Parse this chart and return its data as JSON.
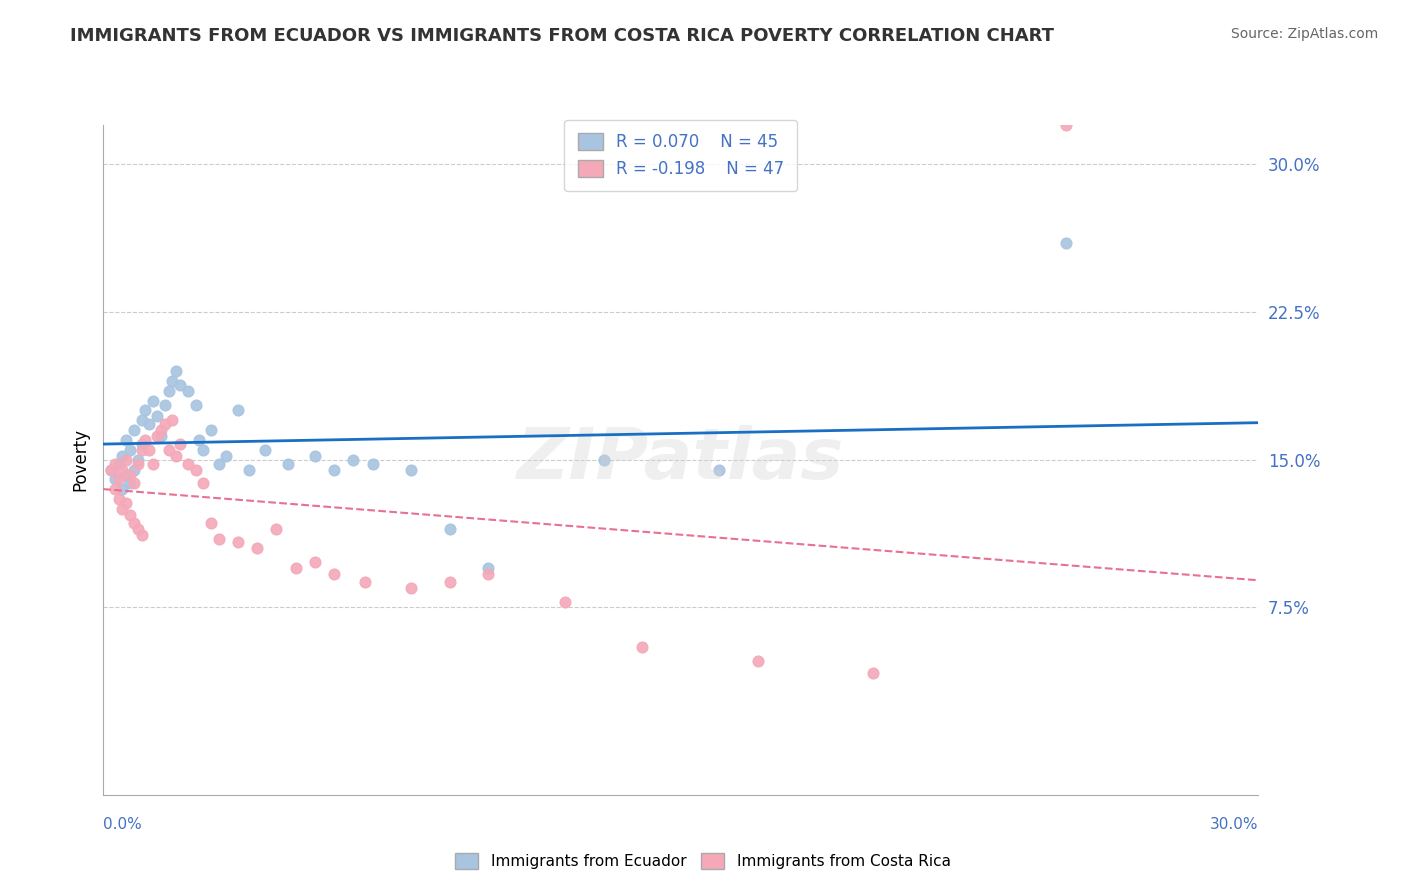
{
  "title": "IMMIGRANTS FROM ECUADOR VS IMMIGRANTS FROM COSTA RICA POVERTY CORRELATION CHART",
  "source": "Source: ZipAtlas.com",
  "ylabel": "Poverty",
  "xlim": [
    0.0,
    0.3
  ],
  "ylim": [
    -0.02,
    0.32
  ],
  "ecuador_R": 0.07,
  "ecuador_N": 45,
  "costarica_R": -0.198,
  "costarica_N": 47,
  "ecuador_color": "#a8c4e0",
  "costarica_color": "#f4a8b8",
  "ecuador_line_color": "#1a6fc4",
  "costarica_line_color": "#e87090",
  "watermark": "ZIPatlas",
  "legend_R_ecuador": "R = 0.070",
  "legend_N_ecuador": "N = 45",
  "legend_R_costarica": "R = -0.198",
  "legend_N_costarica": "N = 47",
  "ecuador_x": [
    0.002,
    0.003,
    0.004,
    0.005,
    0.005,
    0.006,
    0.006,
    0.007,
    0.007,
    0.008,
    0.008,
    0.009,
    0.01,
    0.01,
    0.011,
    0.012,
    0.013,
    0.014,
    0.015,
    0.016,
    0.017,
    0.018,
    0.019,
    0.02,
    0.022,
    0.024,
    0.025,
    0.026,
    0.028,
    0.03,
    0.032,
    0.035,
    0.038,
    0.042,
    0.048,
    0.055,
    0.06,
    0.065,
    0.07,
    0.08,
    0.09,
    0.1,
    0.13,
    0.16,
    0.25
  ],
  "ecuador_y": [
    0.145,
    0.14,
    0.148,
    0.152,
    0.135,
    0.16,
    0.142,
    0.155,
    0.138,
    0.165,
    0.145,
    0.15,
    0.17,
    0.158,
    0.175,
    0.168,
    0.18,
    0.172,
    0.162,
    0.178,
    0.185,
    0.19,
    0.195,
    0.188,
    0.185,
    0.178,
    0.16,
    0.155,
    0.165,
    0.148,
    0.152,
    0.175,
    0.145,
    0.155,
    0.148,
    0.152,
    0.145,
    0.15,
    0.148,
    0.145,
    0.115,
    0.095,
    0.15,
    0.145,
    0.26
  ],
  "costarica_x": [
    0.002,
    0.003,
    0.003,
    0.004,
    0.004,
    0.005,
    0.005,
    0.006,
    0.006,
    0.007,
    0.007,
    0.008,
    0.008,
    0.009,
    0.009,
    0.01,
    0.01,
    0.011,
    0.012,
    0.013,
    0.014,
    0.015,
    0.016,
    0.017,
    0.018,
    0.019,
    0.02,
    0.022,
    0.024,
    0.026,
    0.028,
    0.03,
    0.035,
    0.04,
    0.045,
    0.05,
    0.055,
    0.06,
    0.068,
    0.08,
    0.09,
    0.1,
    0.12,
    0.14,
    0.17,
    0.2,
    0.25
  ],
  "costarica_y": [
    0.145,
    0.148,
    0.135,
    0.14,
    0.13,
    0.145,
    0.125,
    0.15,
    0.128,
    0.142,
    0.122,
    0.138,
    0.118,
    0.148,
    0.115,
    0.155,
    0.112,
    0.16,
    0.155,
    0.148,
    0.162,
    0.165,
    0.168,
    0.155,
    0.17,
    0.152,
    0.158,
    0.148,
    0.145,
    0.138,
    0.118,
    0.11,
    0.108,
    0.105,
    0.115,
    0.095,
    0.098,
    0.092,
    0.088,
    0.085,
    0.088,
    0.092,
    0.078,
    0.055,
    0.048,
    0.042,
    0.32
  ]
}
